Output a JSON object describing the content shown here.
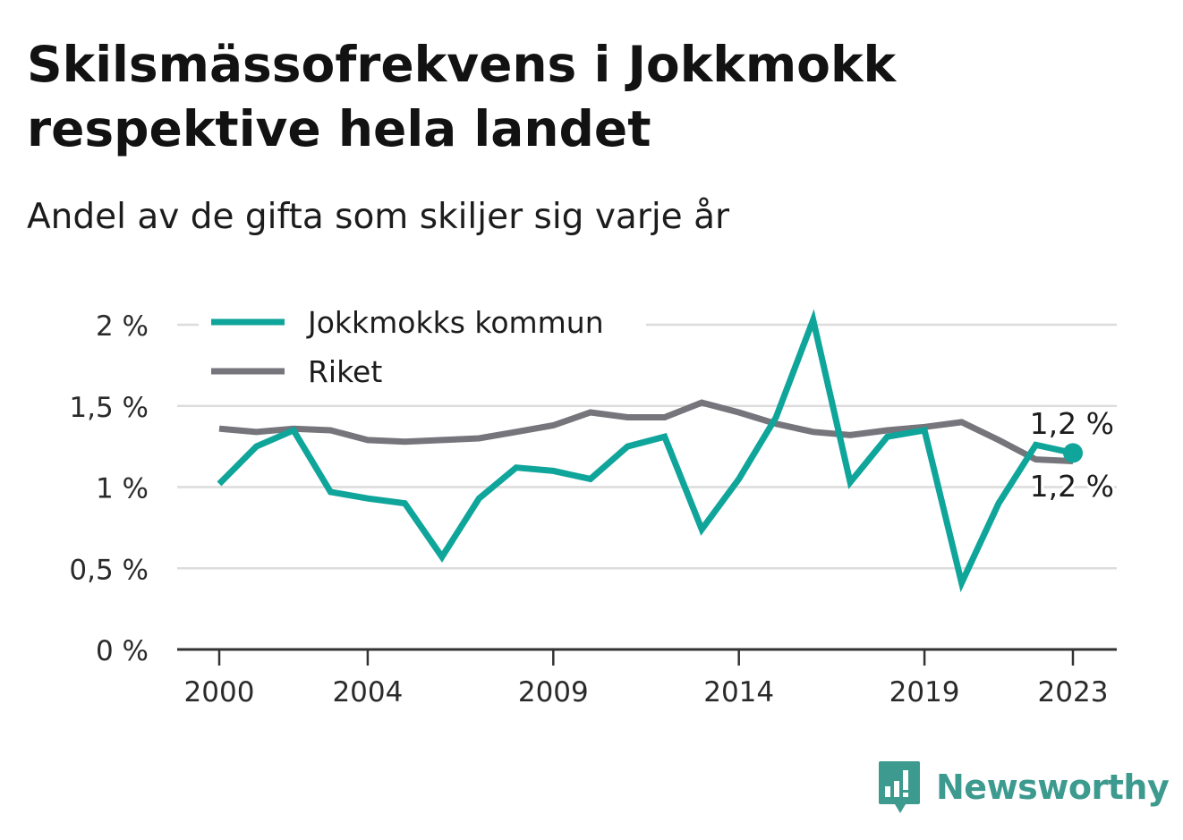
{
  "title": "Skilsmässofrekvens i Jokkmokk respektive hela landet",
  "subtitle": "Andel av de gifta som skiljer sig varje år",
  "brand": "Newsworthy",
  "chart_data": {
    "type": "line",
    "x": [
      2000,
      2001,
      2002,
      2003,
      2004,
      2005,
      2006,
      2007,
      2008,
      2009,
      2010,
      2011,
      2012,
      2013,
      2014,
      2015,
      2016,
      2017,
      2018,
      2019,
      2020,
      2021,
      2022,
      2023
    ],
    "series": [
      {
        "name": "Jokkmokks kommun",
        "color": "#0fa59a",
        "values": [
          1.02,
          1.25,
          1.35,
          0.97,
          0.93,
          0.9,
          0.57,
          0.93,
          1.12,
          1.1,
          1.05,
          1.25,
          1.31,
          0.74,
          1.05,
          1.43,
          2.03,
          1.03,
          1.31,
          1.35,
          0.41,
          0.9,
          1.26,
          1.21
        ]
      },
      {
        "name": "Riket",
        "color": "#76757c",
        "values": [
          1.36,
          1.34,
          1.36,
          1.35,
          1.29,
          1.28,
          1.29,
          1.3,
          1.34,
          1.38,
          1.46,
          1.43,
          1.43,
          1.52,
          1.46,
          1.39,
          1.34,
          1.32,
          1.35,
          1.37,
          1.4,
          1.29,
          1.17,
          1.16
        ]
      }
    ],
    "xticks": [
      2000,
      2004,
      2009,
      2014,
      2019,
      2023
    ],
    "xtick_labels": [
      "2000",
      "2004",
      "2009",
      "2014",
      "2019",
      "2023"
    ],
    "yticks": [
      0,
      0.5,
      1,
      1.5,
      2
    ],
    "ytick_labels": [
      "0 %",
      "0,5 %",
      "1 %",
      "1,5 %",
      "2 %"
    ],
    "ylim": [
      0,
      2
    ],
    "xlim": [
      2000,
      2023
    ],
    "grid": "horizontal",
    "legend": "top-left",
    "end_labels": [
      "1,2 %",
      "1,2 %"
    ]
  }
}
